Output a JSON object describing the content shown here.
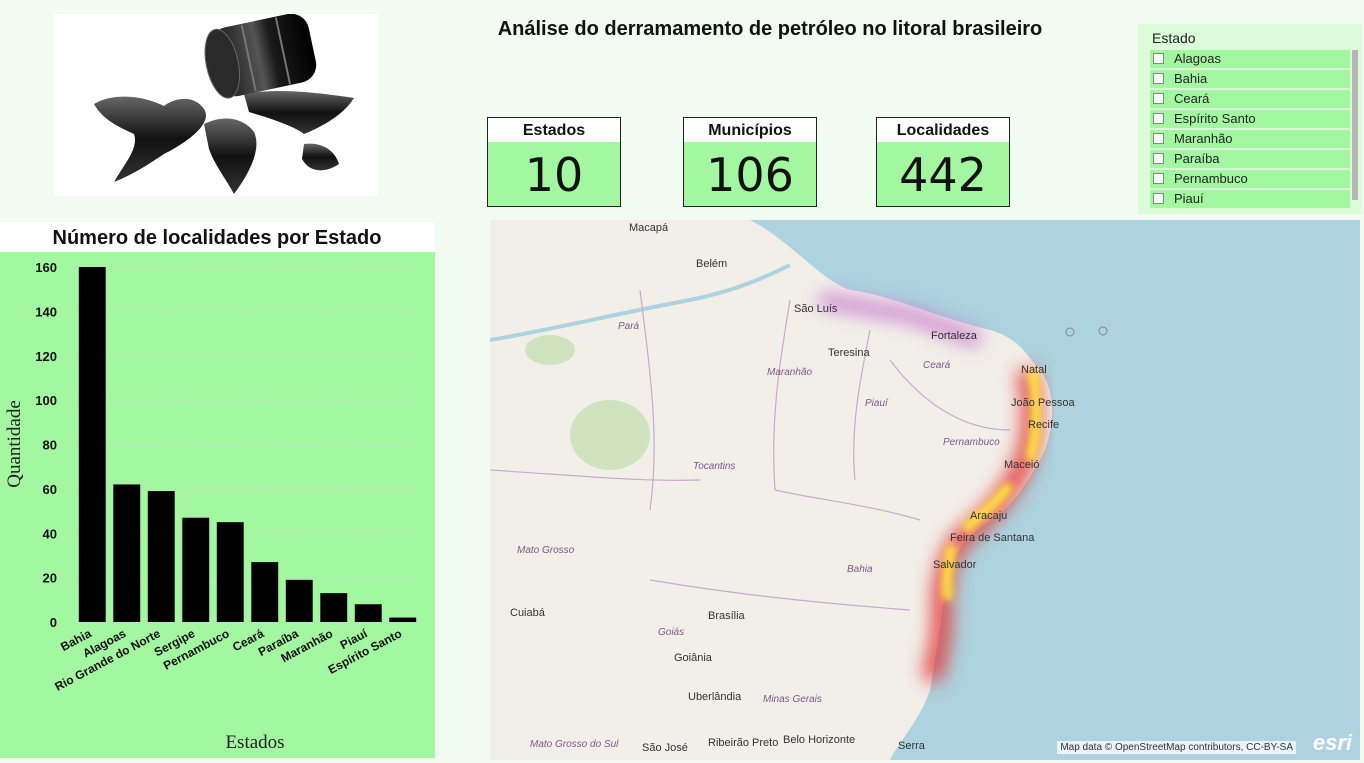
{
  "title": "Análise do derramamento de petróleo no litoral brasileiro",
  "hero_image": "oil-barrel-spill-world-map",
  "kpis": [
    {
      "label": "Estados",
      "value": "10"
    },
    {
      "label": "Municípios",
      "value": "106"
    },
    {
      "label": "Localidades",
      "value": "442"
    }
  ],
  "slicer": {
    "header": "Estado",
    "items": [
      "Alagoas",
      "Bahia",
      "Ceará",
      "Espírito Santo",
      "Maranhão",
      "Paraíba",
      "Pernambuco",
      "Piauí"
    ]
  },
  "chart_data": {
    "type": "bar",
    "title": "Número de localidades por Estado",
    "xlabel": "Estados",
    "ylabel": "Quantidade",
    "categories": [
      "Bahia",
      "Alagoas",
      "Rio Grande do Norte",
      "Sergipe",
      "Pernambuco",
      "Ceará",
      "Paraíba",
      "Maranhão",
      "Piauí",
      "Espírito Santo"
    ],
    "values": [
      160,
      62,
      59,
      47,
      45,
      27,
      19,
      13,
      8,
      2
    ],
    "ylim": [
      0,
      160
    ],
    "yticks": [
      0,
      20,
      40,
      60,
      80,
      100,
      120,
      140,
      160
    ],
    "grid": true,
    "bar_color": "#000000",
    "background": "#a3f7a1"
  },
  "map": {
    "cities": [
      "Macapá",
      "Belém",
      "São Luís",
      "Teresina",
      "Fortaleza",
      "Natal",
      "João Pessoa",
      "Recife",
      "Maceió",
      "Aracaju",
      "Feira de Santana",
      "Salvador",
      "Cuiabá",
      "Brasília",
      "Goiânia",
      "Uberlândia",
      "Belo Horizonte",
      "Serra",
      "São José",
      "Ribeirão Preto"
    ],
    "regions": [
      "Pará",
      "Maranhão",
      "Piauí",
      "Ceará",
      "Pernambuco",
      "Tocantins",
      "Bahia",
      "Mato Grosso",
      "Goiás",
      "Minas Gerais",
      "Mato Grosso do Sul"
    ],
    "attribution": "Map data © OpenStreetMap contributors, CC-BY-SA",
    "logo": "esri"
  },
  "colors": {
    "panel": "#a3f7a1",
    "page": "#f1fbf1",
    "ocean": "#acd3df",
    "land": "#f2efe9"
  }
}
